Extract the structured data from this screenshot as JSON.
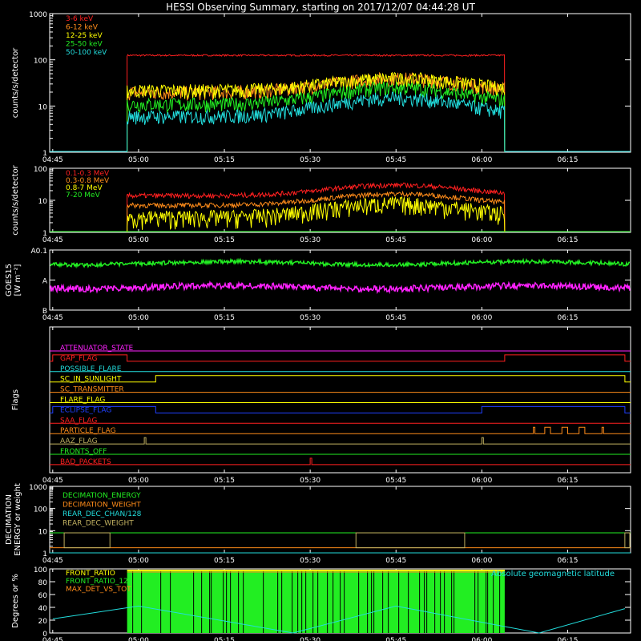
{
  "title": "HESSI Observing Summary, starting on 2017/12/07 04:44:28 UT",
  "time_ticks": [
    "04:45",
    "05:00",
    "05:15",
    "05:30",
    "05:45",
    "06:00",
    "06:15"
  ],
  "colors": {
    "red": "#ff2020",
    "orange": "#ff8c1a",
    "yellow": "#ffff00",
    "green": "#22ee22",
    "cyan": "#22dddd",
    "magenta": "#ff22ff",
    "blue": "#2040ff",
    "olive": "#c0b060",
    "axis": "#ffffff",
    "background": "#000000"
  },
  "chart_data": [
    {
      "id": "panel1",
      "type": "line",
      "ylabel": "counts/s/detector",
      "yscale": "log",
      "ylim": [
        1,
        1000
      ],
      "yticks": [
        "1",
        "10",
        "100",
        "1000"
      ],
      "legend_position": "top-left",
      "series": [
        {
          "name": "3-6 keV",
          "color": "#ff2020",
          "start": "04:58",
          "end": "06:04",
          "baseline": 125,
          "peak": 125,
          "peak_time": "05:45"
        },
        {
          "name": "6-12 keV",
          "color": "#ff8c1a",
          "start": "04:58",
          "end": "06:04",
          "baseline": 20,
          "peak": 40,
          "peak_time": "05:45"
        },
        {
          "name": "12-25 keV",
          "color": "#ffff00",
          "start": "04:58",
          "end": "06:04",
          "baseline": 22,
          "peak": 40,
          "peak_time": "05:45"
        },
        {
          "name": "25-50 keV",
          "color": "#22ee22",
          "start": "04:58",
          "end": "06:04",
          "baseline": 11,
          "peak": 25,
          "peak_time": "05:45"
        },
        {
          "name": "50-100 keV",
          "color": "#22dddd",
          "start": "04:58",
          "end": "06:04",
          "baseline": 6,
          "peak": 15,
          "peak_time": "05:45"
        }
      ]
    },
    {
      "id": "panel2",
      "type": "line",
      "ylabel": "counts/s/detector",
      "yscale": "log",
      "ylim": [
        1,
        100
      ],
      "yticks": [
        "1",
        "10",
        "100"
      ],
      "legend_position": "top-left",
      "series": [
        {
          "name": "0.1-0.3 MeV",
          "color": "#ff2020",
          "start": "04:58",
          "end": "06:04",
          "baseline": 14,
          "peak": 30,
          "peak_time": "05:45"
        },
        {
          "name": "0.3-0.8 MeV",
          "color": "#ff8c1a",
          "start": "04:58",
          "end": "06:04",
          "baseline": 7,
          "peak": 16,
          "peak_time": "05:45"
        },
        {
          "name": "0.8-7 MeV",
          "color": "#ffff00",
          "start": "04:58",
          "end": "06:04",
          "baseline": 3,
          "peak": 8,
          "peak_time": "05:45"
        },
        {
          "name": "7-20 MeV",
          "color": "#22ee22",
          "start": "04:45",
          "end": "06:25",
          "baseline": 1,
          "peak": 1,
          "peak_time": "05:45"
        }
      ]
    },
    {
      "id": "panel3",
      "type": "line",
      "ylabel": "GOES15",
      "ylabel2": "[W m⁻²]",
      "yscale": "log",
      "yticks": [
        "A0.1",
        "A",
        "B"
      ],
      "series": [
        {
          "color": "#22ee22",
          "level": 0.78
        },
        {
          "color": "#ff22ff",
          "level": 0.38
        }
      ]
    },
    {
      "id": "panel4",
      "type": "flags",
      "ylabel": "Flags",
      "flags": [
        {
          "name": "ATTENUATOR_STATE",
          "color": "#ff22ff",
          "high": []
        },
        {
          "name": "GAP_FLAG",
          "color": "#ff2020",
          "high": [
            [
              "04:45",
              "04:58"
            ],
            [
              "06:04",
              "06:25"
            ]
          ]
        },
        {
          "name": "POSSIBLE_FLARE",
          "color": "#22dddd",
          "high": []
        },
        {
          "name": "SC_IN_SUNLIGHT",
          "color": "#ffff00",
          "high": [
            [
              "05:03",
              "06:25"
            ]
          ]
        },
        {
          "name": "SC_TRANSMITTER",
          "color": "#ff8c1a",
          "high": []
        },
        {
          "name": "FLARE_FLAG",
          "color": "#ffff00",
          "high": []
        },
        {
          "name": "ECLIPSE_FLAG",
          "color": "#2040ff",
          "high": [
            [
              "04:45",
              "05:03"
            ],
            [
              "06:00",
              "06:25"
            ]
          ]
        },
        {
          "name": "SAA_FLAG",
          "color": "#ff2020",
          "high": []
        },
        {
          "name": "PARTICLE_FLAG",
          "color": "#ff8c1a",
          "high": [
            [
              "06:09",
              "06:09"
            ],
            [
              "06:11",
              "06:12"
            ],
            [
              "06:14",
              "06:15"
            ],
            [
              "06:17",
              "06:18"
            ],
            [
              "06:21",
              "06:21"
            ]
          ]
        },
        {
          "name": "AAZ_FLAG",
          "color": "#c0b060",
          "high": [
            [
              "05:01",
              "05:01"
            ],
            [
              "06:00",
              "06:00"
            ]
          ]
        },
        {
          "name": "FRONTS_OFF",
          "color": "#22ee22",
          "high": []
        },
        {
          "name": "BAD_PACKETS",
          "color": "#ff2020",
          "high": [
            [
              "05:30",
              "05:30"
            ]
          ]
        }
      ]
    },
    {
      "id": "panel5",
      "type": "line",
      "ylabel": "DECIMATION",
      "ylabel2": "ENERGY or weight",
      "yscale": "log",
      "ylim": [
        1,
        1000
      ],
      "yticks": [
        "1",
        "10",
        "100",
        "1000"
      ],
      "legend_position": "top-left",
      "series": [
        {
          "name": "DECIMATION_ENERGY",
          "color": "#22ee22",
          "value": 8
        },
        {
          "name": "DECIMATION_WEIGHT",
          "color": "#ff8c1a",
          "value": 1.7
        },
        {
          "name": "REAR_DEC_CHAN/128",
          "color": "#22dddd",
          "value": 1
        },
        {
          "name": "REAR_DEC_WEIGHT",
          "color": "#c0b060",
          "steps": [
            [
              "04:47",
              "04:55"
            ],
            [
              "05:38",
              "05:57"
            ],
            [
              "06:25",
              "06:26"
            ]
          ]
        }
      ]
    },
    {
      "id": "panel6",
      "type": "line",
      "ylabel": "Degrees or %",
      "ylim": [
        0,
        100
      ],
      "yticks": [
        "0",
        "20",
        "40",
        "60",
        "80",
        "100"
      ],
      "annotation": "Absolute geomagnetic latitude",
      "series": [
        {
          "name": "FRONT_RATIO",
          "color": "#ffff00",
          "start": "04:58",
          "end": "06:04"
        },
        {
          "name": "FRONT_RATIO_1225",
          "color": "#22ee22",
          "start": "04:58",
          "end": "06:04"
        },
        {
          "name": "MAX_DET_VS_TOT",
          "color": "#ff8c1a",
          "start": "04:58",
          "end": "06:04"
        },
        {
          "name": "Absolute geomagnetic latitude",
          "color": "#22dddd",
          "x": [
            "04:45",
            "05:00",
            "05:27",
            "05:45",
            "06:10",
            "06:25"
          ],
          "y": [
            22,
            42,
            0,
            42,
            0,
            38
          ]
        }
      ]
    }
  ]
}
